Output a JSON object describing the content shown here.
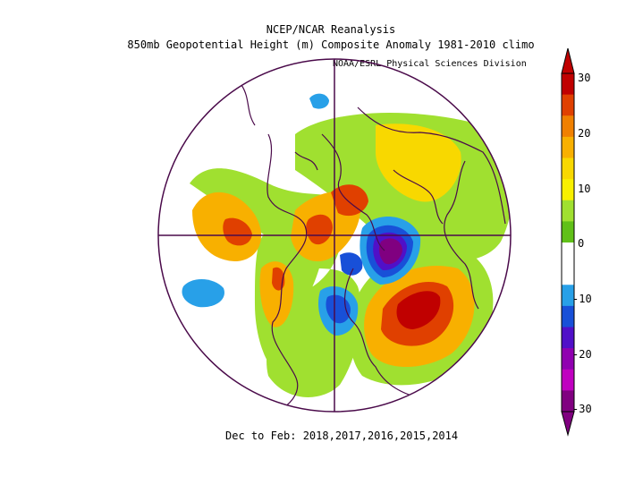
{
  "header": {
    "line1": "NCEP/NCAR Reanalysis",
    "line2": "850mb Geopotential Height (m) Composite Anomaly 1981-2010 climo",
    "credit": "NOAA/ESRL Physical Sciences Division"
  },
  "footer": {
    "period": "Dec to Feb: 2018,2017,2016,2015,2014"
  },
  "colorbar": {
    "tick_labels": [
      "30",
      "20",
      "10",
      "0",
      "-10",
      "-20",
      "-30"
    ],
    "colors": [
      "#c00000",
      "#e04000",
      "#f08000",
      "#f8b000",
      "#f8d800",
      "#f8f000",
      "#a0e030",
      "#60c018",
      "#ffffff",
      "#ffffff",
      "#28a0e8",
      "#1850d8",
      "#5010c8",
      "#9000b0",
      "#c000c0",
      "#800080"
    ]
  },
  "map": {
    "projection": "north polar stereographic",
    "grid": true
  }
}
